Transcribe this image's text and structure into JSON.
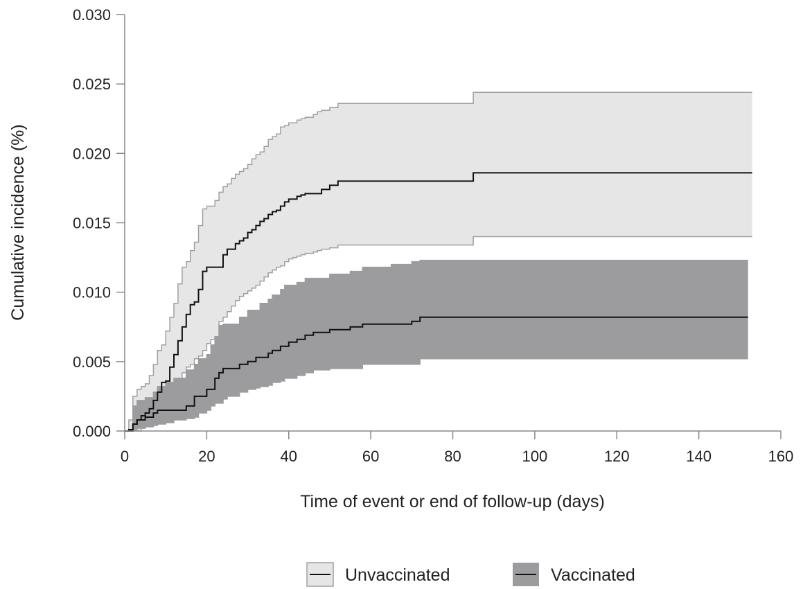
{
  "chart_data": {
    "type": "line",
    "title": "",
    "xlabel": "Time of event or end of follow-up (days)",
    "ylabel": "Cumulative incidence (%)",
    "xlim": [
      0,
      160
    ],
    "ylim": [
      0,
      0.03
    ],
    "xticks": [
      0,
      20,
      40,
      60,
      80,
      100,
      120,
      140,
      160
    ],
    "xtick_labels": [
      "0",
      "20",
      "40",
      "60",
      "80",
      "100",
      "120",
      "140",
      "160"
    ],
    "yticks": [
      0,
      0.005,
      0.01,
      0.015,
      0.02,
      0.025,
      0.03
    ],
    "ytick_labels": [
      "0.000",
      "0.005",
      "0.010",
      "0.015",
      "0.020",
      "0.025",
      "0.030"
    ],
    "grid": false,
    "legend_position": "bottom-center",
    "series": [
      {
        "name": "Unvaccinated",
        "band_color": "#e6e6e6",
        "band_edge_color": "#a0a0a0",
        "line_color": "#111111",
        "x": [
          0,
          1,
          2,
          3,
          4,
          5,
          6,
          7,
          8,
          9,
          10,
          11,
          12,
          13,
          14,
          15,
          16,
          17,
          18,
          19,
          20,
          21,
          22,
          23,
          24,
          25,
          26,
          27,
          28,
          29,
          30,
          31,
          32,
          33,
          34,
          35,
          36,
          37,
          38,
          39,
          40,
          41,
          42,
          43,
          44,
          45,
          46,
          47,
          48,
          50,
          52,
          55,
          60,
          70,
          84,
          85,
          100,
          120,
          140,
          153
        ],
        "estimate": [
          0,
          0.0001,
          0.0005,
          0.0008,
          0.0011,
          0.0013,
          0.0016,
          0.0022,
          0.0028,
          0.0035,
          0.0036,
          0.0046,
          0.0055,
          0.0065,
          0.0075,
          0.0084,
          0.0091,
          0.0093,
          0.0102,
          0.0115,
          0.0118,
          0.0118,
          0.0118,
          0.0118,
          0.0127,
          0.0131,
          0.0131,
          0.0135,
          0.0137,
          0.0139,
          0.0143,
          0.0145,
          0.0148,
          0.0151,
          0.0153,
          0.0156,
          0.0158,
          0.0159,
          0.0162,
          0.0165,
          0.0167,
          0.0167,
          0.0169,
          0.017,
          0.0171,
          0.0171,
          0.0171,
          0.0171,
          0.0174,
          0.0177,
          0.018,
          0.018,
          0.018,
          0.018,
          0.018,
          0.0186,
          0.0186,
          0.0186,
          0.0186,
          0.0186
        ],
        "upper": [
          0,
          0.0008,
          0.0025,
          0.003,
          0.0032,
          0.0034,
          0.004,
          0.0048,
          0.0058,
          0.0062,
          0.0072,
          0.0082,
          0.0092,
          0.0106,
          0.0118,
          0.0122,
          0.013,
          0.0136,
          0.0148,
          0.016,
          0.0162,
          0.0162,
          0.0166,
          0.0172,
          0.0176,
          0.0178,
          0.0182,
          0.0185,
          0.0187,
          0.0189,
          0.0192,
          0.0196,
          0.0199,
          0.0201,
          0.0205,
          0.021,
          0.0212,
          0.0214,
          0.0219,
          0.022,
          0.0222,
          0.0222,
          0.0224,
          0.0225,
          0.0226,
          0.0226,
          0.0228,
          0.023,
          0.0231,
          0.0233,
          0.0236,
          0.0236,
          0.0236,
          0.0236,
          0.0236,
          0.0244,
          0.0244,
          0.0244,
          0.0244,
          0.0244
        ],
        "lower": [
          0,
          0,
          0,
          0,
          0.0002,
          0.0005,
          0.0006,
          0.0008,
          0.001,
          0.0012,
          0.0014,
          0.0019,
          0.0024,
          0.0033,
          0.0042,
          0.0046,
          0.0048,
          0.0052,
          0.0054,
          0.0058,
          0.0063,
          0.0066,
          0.0068,
          0.0079,
          0.0082,
          0.0086,
          0.009,
          0.0094,
          0.0097,
          0.0099,
          0.0101,
          0.0103,
          0.0105,
          0.0108,
          0.0111,
          0.0114,
          0.0116,
          0.0118,
          0.0119,
          0.0122,
          0.0124,
          0.0125,
          0.0126,
          0.0127,
          0.0128,
          0.0128,
          0.0129,
          0.013,
          0.0131,
          0.0132,
          0.0134,
          0.0134,
          0.0134,
          0.0134,
          0.0134,
          0.014,
          0.014,
          0.014,
          0.014,
          0.014
        ]
      },
      {
        "name": "Vaccinated",
        "band_color": "#9c9c9f",
        "band_edge_color": "#9c9c9f",
        "line_color": "#111111",
        "x": [
          0,
          2,
          3,
          5,
          7,
          8,
          10,
          12,
          15,
          17,
          18,
          20,
          21,
          22,
          23,
          24,
          25,
          27,
          28,
          30,
          32,
          33,
          35,
          36,
          38,
          39,
          40,
          42,
          44,
          46,
          48,
          50,
          55,
          58,
          60,
          65,
          70,
          72,
          80,
          100,
          120,
          140,
          152
        ],
        "estimate": [
          0,
          0.0005,
          0.0008,
          0.001,
          0.0013,
          0.0015,
          0.0015,
          0.0015,
          0.0018,
          0.0025,
          0.0025,
          0.003,
          0.003,
          0.0038,
          0.0042,
          0.0045,
          0.0045,
          0.0045,
          0.0048,
          0.005,
          0.0053,
          0.0053,
          0.0056,
          0.0058,
          0.0061,
          0.0061,
          0.0064,
          0.0066,
          0.0069,
          0.0071,
          0.0071,
          0.0073,
          0.0075,
          0.0077,
          0.0077,
          0.0077,
          0.0079,
          0.0082,
          0.0082,
          0.0082,
          0.0082,
          0.0082,
          0.0082
        ],
        "upper": [
          0,
          0.0018,
          0.0022,
          0.0024,
          0.0028,
          0.0032,
          0.0035,
          0.0038,
          0.0044,
          0.0048,
          0.0052,
          0.0055,
          0.0062,
          0.0068,
          0.0076,
          0.0077,
          0.0077,
          0.0077,
          0.0082,
          0.0087,
          0.0087,
          0.0092,
          0.0095,
          0.0098,
          0.0102,
          0.0105,
          0.0105,
          0.0107,
          0.011,
          0.011,
          0.011,
          0.0113,
          0.0115,
          0.0118,
          0.0118,
          0.012,
          0.0122,
          0.0123,
          0.0123,
          0.0123,
          0.0123,
          0.0123,
          0.0123
        ],
        "lower": [
          0,
          0.0001,
          0.0002,
          0.0003,
          0.0004,
          0.0005,
          0.0006,
          0.0008,
          0.0009,
          0.001,
          0.0013,
          0.0015,
          0.0018,
          0.002,
          0.002,
          0.0023,
          0.0025,
          0.0025,
          0.0028,
          0.003,
          0.0031,
          0.0032,
          0.0033,
          0.0035,
          0.0036,
          0.0038,
          0.0038,
          0.004,
          0.0042,
          0.0044,
          0.0044,
          0.0045,
          0.0045,
          0.0048,
          0.0048,
          0.0048,
          0.0048,
          0.0052,
          0.0052,
          0.0052,
          0.0052,
          0.0052,
          0.0052
        ]
      }
    ]
  },
  "colors": {
    "axis": "#888888",
    "text": "#222222"
  }
}
